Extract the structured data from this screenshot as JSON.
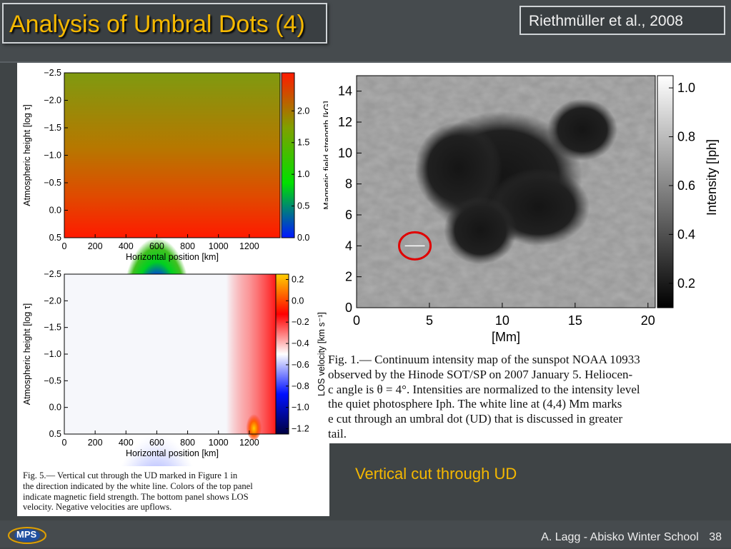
{
  "slide": {
    "title": "Analysis of Umbral Dots (4)",
    "citation": "Riethmüller et al., 2008",
    "subtitle": "Vertical cut through UD",
    "footer": "A. Lagg - Abisko Winter School",
    "page_number": "38",
    "logo_text": "MPS",
    "accent_color": "#f5b800"
  },
  "captions": {
    "fig1": [
      "Fig. 1.— Continuum intensity map of the sunspot NOAA 10933",
      "observed by the Hinode SOT/SP on 2007 January 5. Heliocen-",
      "c angle is θ = 4°. Intensities are normalized to the intensity level",
      "the quiet photosphere Iph. The white line at (4,4) Mm marks",
      "e cut through an umbral dot (UD) that is discussed in greater",
      "tail."
    ],
    "fig5": [
      "Fig. 5.— Vertical cut through the UD marked in Figure 1 in",
      "the direction indicated by the white line. Colors of the top panel",
      "indicate magnetic field strength. The bottom panel shows LOS",
      "velocity. Negative velocities are upflows."
    ]
  },
  "chart_data": [
    {
      "type": "heatmap",
      "title": "",
      "ylabel": "Atmospheric height [log τ]",
      "xlabel": "Horizontal position [km]",
      "x_ticks": [
        0,
        200,
        400,
        600,
        800,
        1000,
        1200
      ],
      "xlim": [
        0,
        1400
      ],
      "y_ticks": [
        -2.5,
        -2.0,
        -1.5,
        -1.0,
        -0.5,
        0.0,
        0.5
      ],
      "y_tick_labels": [
        "−2.5",
        "−2.0",
        "−1.5",
        "−1.0",
        "−0.5",
        "0.0",
        "0.5"
      ],
      "ylim": [
        -2.5,
        0.5
      ],
      "colorbar": {
        "label": "Magnetic field strength [kG]",
        "ticks": [
          0.0,
          0.5,
          1.0,
          1.5,
          2.0
        ],
        "tick_labels": [
          "0.0",
          "0.5",
          "1.0",
          "1.5",
          "2.0"
        ],
        "range": [
          0.0,
          2.6
        ],
        "colormap": [
          "#0018ff",
          "#00e000",
          "#80a000",
          "#ff1a00"
        ]
      },
      "features": [
        {
          "kind": "weak-field dome",
          "center_x_km": 600,
          "min_value": 0.0
        }
      ]
    },
    {
      "type": "heatmap",
      "title": "",
      "ylabel": "Atmospheric height [log τ]",
      "xlabel": "Horizontal position [km]",
      "x_ticks": [
        0,
        200,
        400,
        600,
        800,
        1000,
        1200
      ],
      "xlim": [
        0,
        1400
      ],
      "y_ticks": [
        -2.5,
        -2.0,
        -1.5,
        -1.0,
        -0.5,
        0.0,
        0.5
      ],
      "y_tick_labels": [
        "−2.5",
        "−2.0",
        "−1.5",
        "−1.0",
        "−0.5",
        "0.0",
        "0.5"
      ],
      "ylim": [
        -2.5,
        0.5
      ],
      "colorbar": {
        "label": "LOS velocity [km s⁻¹]",
        "ticks": [
          -1.2,
          -1.0,
          -0.8,
          -0.6,
          -0.4,
          -0.2,
          0.0,
          0.2
        ],
        "tick_labels": [
          "−1.2",
          "−1.0",
          "−0.8",
          "−0.6",
          "−0.4",
          "−0.2",
          "0.0",
          "0.2"
        ],
        "range": [
          -1.25,
          0.25
        ],
        "colormap": [
          "#000040",
          "#0010ff",
          "#ffffff",
          "#ff0000",
          "#ffd000"
        ]
      },
      "features": [
        {
          "kind": "upflow",
          "center_x_km": 600,
          "min_value": -1.2
        },
        {
          "kind": "downflow",
          "center_x_km": 1230,
          "max_value": 0.2
        }
      ]
    },
    {
      "type": "heatmap",
      "title": "",
      "xlabel": "[Mm]",
      "x_ticks": [
        0,
        5,
        10,
        15,
        20
      ],
      "xlim": [
        0,
        20.5
      ],
      "y_ticks": [
        0,
        2,
        4,
        6,
        8,
        10,
        12,
        14
      ],
      "ylim": [
        0,
        15
      ],
      "colorbar": {
        "label": "Intensity [Iph]",
        "ticks": [
          0.2,
          0.4,
          0.6,
          0.8,
          1.0
        ],
        "tick_labels": [
          "0.2",
          "0.4",
          "0.6",
          "0.8",
          "1.0"
        ],
        "range": [
          0.1,
          1.05
        ],
        "colormap": [
          "#000000",
          "#ffffff"
        ]
      },
      "marker": {
        "shape": "circle",
        "color": "#e00000",
        "center": [
          4,
          4
        ]
      }
    }
  ]
}
